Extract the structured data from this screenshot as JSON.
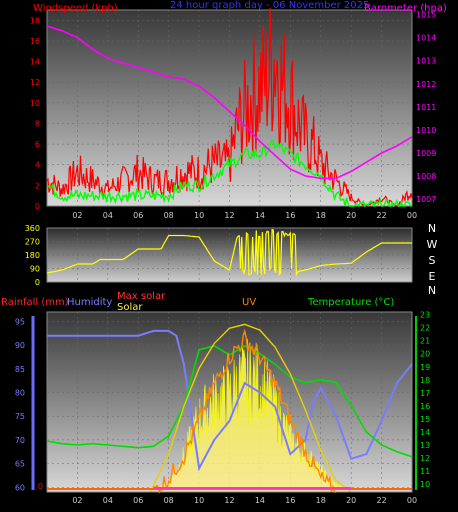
{
  "colors": {
    "wind": "#ff0000",
    "gust": "#ff0000",
    "wind_avg": "#00ff00",
    "barometer": "#ff00ff",
    "title": "#3333ff",
    "direction": "#ffff00",
    "rain": "#ff0000",
    "humidity": "#7b7bff",
    "max_solar": "#ff3333",
    "solar": "#ffff00",
    "uv": "#ff8800",
    "temperature": "#00dd00",
    "bg_top": "#3a3a3a",
    "bg_bottom": "#dcdcdc"
  },
  "chart_data": [
    {
      "type": "line",
      "title": "24 hour graph day - 06 November 2025",
      "ylabel_left": "Windspeed (kph)",
      "ylabel_right": "Barometer (hpa)",
      "x_ticks": [
        "02",
        "04",
        "06",
        "08",
        "10",
        "12",
        "14",
        "16",
        "18",
        "20",
        "22",
        "00"
      ],
      "y_left_ticks": [
        "0",
        "2",
        "4",
        "6",
        "8",
        "10",
        "12",
        "14",
        "16",
        "18"
      ],
      "y_right_ticks": [
        "1007",
        "1008",
        "1009",
        "1010",
        "1011",
        "1012",
        "1013",
        "1014",
        "1015"
      ],
      "ylim_left": [
        0,
        19
      ],
      "ylim_right": [
        1006.7,
        1015.2
      ],
      "xlim": [
        0,
        24
      ],
      "series": [
        {
          "kind": "gust",
          "x": [
            0,
            1,
            2,
            3,
            4,
            5,
            6,
            7,
            8,
            9,
            10,
            11,
            12,
            12.5,
            13,
            13.5,
            14,
            14.5,
            15,
            15.5,
            16,
            16.5,
            17,
            17.5,
            18,
            19,
            20,
            21,
            22,
            23,
            24
          ],
          "y": [
            3,
            2,
            4,
            3,
            2,
            3,
            4,
            3,
            3,
            4,
            4,
            5,
            5,
            9,
            11,
            13,
            14,
            15,
            18,
            14,
            13,
            10,
            8,
            7,
            5,
            3,
            1,
            0,
            1,
            0,
            2
          ]
        },
        {
          "kind": "wind_avg",
          "x": [
            0,
            1,
            2,
            3,
            4,
            5,
            6,
            7,
            8,
            9,
            10,
            11,
            12,
            13,
            14,
            15,
            16,
            17,
            18,
            19,
            20,
            21,
            22,
            23,
            24
          ],
          "y": [
            2,
            1,
            1,
            1,
            1,
            1,
            1,
            1,
            1,
            2,
            2,
            3,
            4,
            5,
            5,
            6,
            5,
            4,
            3,
            1,
            0,
            0,
            0,
            0,
            0
          ]
        },
        {
          "kind": "barometer",
          "x": [
            0,
            1,
            2,
            3,
            4,
            5,
            6,
            7,
            8,
            9,
            10,
            11,
            12,
            13,
            14,
            15,
            16,
            17,
            18,
            19,
            20,
            21,
            22,
            23,
            24
          ],
          "y": [
            1014.5,
            1014.3,
            1014.0,
            1013.5,
            1013.1,
            1012.9,
            1012.7,
            1012.5,
            1012.3,
            1012.2,
            1011.9,
            1011.4,
            1010.8,
            1010.2,
            1009.5,
            1008.9,
            1008.3,
            1008.0,
            1007.9,
            1007.9,
            1008.2,
            1008.6,
            1009.0,
            1009.3,
            1009.7
          ]
        }
      ]
    },
    {
      "type": "line",
      "y_ticks": [
        "0",
        "90",
        "180",
        "270",
        "360"
      ],
      "ylim": [
        0,
        360
      ],
      "direction_labels": [
        "N",
        "W",
        "S",
        "E",
        "N"
      ],
      "series": [
        {
          "kind": "direction",
          "x": [
            0,
            1,
            2,
            3,
            3.5,
            4,
            5,
            6,
            7,
            7.5,
            8,
            9,
            10,
            11,
            12,
            12.5,
            13,
            14,
            15,
            16,
            17,
            18,
            19,
            20,
            21,
            22,
            23,
            24
          ],
          "y": [
            60,
            80,
            120,
            120,
            150,
            150,
            150,
            220,
            220,
            220,
            310,
            310,
            300,
            140,
            80,
            300,
            80,
            280,
            100,
            60,
            80,
            110,
            120,
            125,
            200,
            260,
            260,
            260
          ]
        }
      ]
    },
    {
      "type": "line",
      "ylabel_rain": "Rainfall (mm)",
      "ylabel_humidity": "Humidity",
      "label_max_solar": "Max solar",
      "label_solar": "Solar",
      "label_uv": "UV",
      "ylabel_temperature": "Temperature (°C)",
      "x_ticks": [
        "02",
        "04",
        "06",
        "08",
        "10",
        "12",
        "14",
        "16",
        "18",
        "20",
        "22",
        "00"
      ],
      "y_left_ticks": [
        "60",
        "65",
        "70",
        "75",
        "80",
        "85",
        "90",
        "95"
      ],
      "y_right_ticks": [
        "10",
        "11",
        "12",
        "13",
        "14",
        "15",
        "16",
        "17",
        "18",
        "19",
        "20",
        "21",
        "22",
        "23"
      ],
      "ylim_left": [
        59,
        97
      ],
      "ylim_right": [
        9.4,
        23.2
      ],
      "rain_marks": [
        "0"
      ],
      "series": [
        {
          "kind": "humidity",
          "x": [
            0,
            1,
            2,
            3,
            4,
            5,
            6,
            7,
            7.5,
            8,
            8.5,
            9,
            9.5,
            10,
            11,
            12,
            13,
            14,
            15,
            16,
            17,
            17.5,
            18,
            19,
            20,
            21,
            22,
            23,
            24
          ],
          "y": [
            92,
            92,
            92,
            92,
            92,
            92,
            92,
            93,
            93,
            93,
            92,
            86,
            75,
            64,
            70,
            74,
            82,
            80,
            77,
            67,
            70,
            78,
            81,
            75,
            66,
            67,
            74,
            82,
            86
          ]
        },
        {
          "kind": "temperature",
          "x": [
            0,
            1,
            2,
            3,
            4,
            5,
            6,
            7,
            8,
            9,
            10,
            11,
            12,
            13,
            14,
            15,
            16,
            17,
            18,
            19,
            20,
            21,
            22,
            23,
            24
          ],
          "y": [
            13.3,
            13.1,
            13.0,
            13.1,
            13.0,
            12.9,
            12.8,
            12.9,
            13.7,
            16.0,
            20.3,
            20.6,
            19.9,
            20.6,
            20.0,
            19.2,
            18.2,
            17.8,
            18.0,
            17.8,
            16.0,
            14.0,
            13.0,
            12.5,
            12.1
          ]
        },
        {
          "kind": "max_solar",
          "x": [
            6.8,
            8,
            9,
            10,
            11,
            12,
            13,
            14,
            15,
            16,
            17,
            18,
            19,
            20
          ],
          "y": [
            0,
            200,
            450,
            650,
            780,
            860,
            880,
            850,
            760,
            620,
            430,
            220,
            60,
            0
          ]
        },
        {
          "kind": "solar",
          "x": [
            7,
            8,
            9,
            10,
            11,
            12,
            12.5,
            13,
            13.5,
            14,
            14.5,
            15,
            16,
            17,
            18,
            19,
            20
          ],
          "y": [
            0,
            60,
            200,
            420,
            520,
            560,
            620,
            640,
            660,
            620,
            560,
            480,
            300,
            220,
            120,
            40,
            0
          ]
        },
        {
          "kind": "uv",
          "x": [
            7,
            8,
            9,
            10,
            11,
            12,
            13,
            14,
            15,
            16,
            17,
            18,
            19
          ],
          "y": [
            0,
            0.3,
            0.8,
            1.6,
            2.4,
            3.0,
            3.4,
            3.0,
            2.4,
            1.6,
            0.9,
            0.3,
            0
          ]
        }
      ]
    }
  ]
}
